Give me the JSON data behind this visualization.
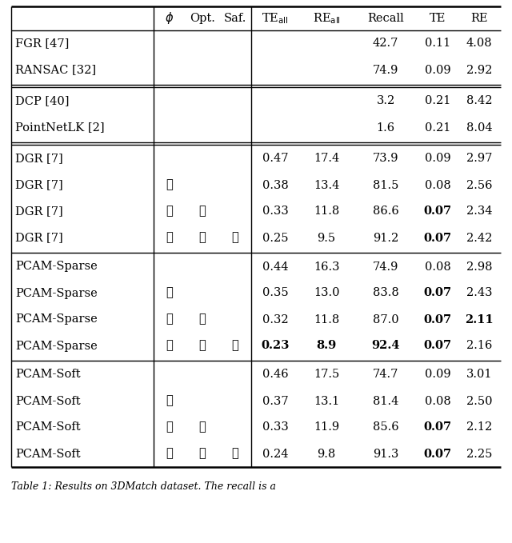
{
  "rows": [
    {
      "method": "FGR [47]",
      "phi": " ",
      "opt": " ",
      "saf": " ",
      "te_all": "",
      "re_all": "",
      "recall": "42.7",
      "te": "0.11",
      "re": "4.08",
      "bold": []
    },
    {
      "method": "RANSAC [32]",
      "phi": " ",
      "opt": " ",
      "saf": " ",
      "te_all": "",
      "re_all": "",
      "recall": "74.9",
      "te": "0.09",
      "re": "2.92",
      "bold": []
    },
    {
      "method": "DCP [40]",
      "phi": " ",
      "opt": " ",
      "saf": " ",
      "te_all": "",
      "re_all": "",
      "recall": "3.2",
      "te": "0.21",
      "re": "8.42",
      "bold": []
    },
    {
      "method": "PointNetLK [2]",
      "phi": " ",
      "opt": " ",
      "saf": " ",
      "te_all": "",
      "re_all": "",
      "recall": "1.6",
      "te": "0.21",
      "re": "8.04",
      "bold": []
    },
    {
      "method": "DGR [7]",
      "phi": " ",
      "opt": " ",
      "saf": " ",
      "te_all": "0.47",
      "re_all": "17.4",
      "recall": "73.9",
      "te": "0.09",
      "re": "2.97",
      "bold": []
    },
    {
      "method": "DGR [7]",
      "phi": "v",
      "opt": " ",
      "saf": " ",
      "te_all": "0.38",
      "re_all": "13.4",
      "recall": "81.5",
      "te": "0.08",
      "re": "2.56",
      "bold": []
    },
    {
      "method": "DGR [7]",
      "phi": "v",
      "opt": "v",
      "saf": " ",
      "te_all": "0.33",
      "re_all": "11.8",
      "recall": "86.6",
      "te": "0.07",
      "re": "2.34",
      "bold": [
        "te"
      ]
    },
    {
      "method": "DGR [7]",
      "phi": "v",
      "opt": "v",
      "saf": "v",
      "te_all": "0.25",
      "re_all": "9.5",
      "recall": "91.2",
      "te": "0.07",
      "re": "2.42",
      "bold": [
        "te"
      ]
    },
    {
      "method": "PCAM-Sparse",
      "phi": " ",
      "opt": " ",
      "saf": " ",
      "te_all": "0.44",
      "re_all": "16.3",
      "recall": "74.9",
      "te": "0.08",
      "re": "2.98",
      "bold": []
    },
    {
      "method": "PCAM-Sparse",
      "phi": "v",
      "opt": " ",
      "saf": " ",
      "te_all": "0.35",
      "re_all": "13.0",
      "recall": "83.8",
      "te": "0.07",
      "re": "2.43",
      "bold": [
        "te"
      ]
    },
    {
      "method": "PCAM-Sparse",
      "phi": "v",
      "opt": "v",
      "saf": " ",
      "te_all": "0.32",
      "re_all": "11.8",
      "recall": "87.0",
      "te": "0.07",
      "re": "2.11",
      "bold": [
        "te",
        "re"
      ]
    },
    {
      "method": "PCAM-Sparse",
      "phi": "v",
      "opt": "v",
      "saf": "v",
      "te_all": "0.23",
      "re_all": "8.9",
      "recall": "92.4",
      "te": "0.07",
      "re": "2.16",
      "bold": [
        "te_all",
        "re_all",
        "recall",
        "te"
      ]
    },
    {
      "method": "PCAM-Soft",
      "phi": " ",
      "opt": " ",
      "saf": " ",
      "te_all": "0.46",
      "re_all": "17.5",
      "recall": "74.7",
      "te": "0.09",
      "re": "3.01",
      "bold": []
    },
    {
      "method": "PCAM-Soft",
      "phi": "v",
      "opt": " ",
      "saf": " ",
      "te_all": "0.37",
      "re_all": "13.1",
      "recall": "81.4",
      "te": "0.08",
      "re": "2.50",
      "bold": []
    },
    {
      "method": "PCAM-Soft",
      "phi": "v",
      "opt": "v",
      "saf": " ",
      "te_all": "0.33",
      "re_all": "11.9",
      "recall": "85.6",
      "te": "0.07",
      "re": "2.12",
      "bold": [
        "te"
      ]
    },
    {
      "method": "PCAM-Soft",
      "phi": "v",
      "opt": "v",
      "saf": "v",
      "te_all": "0.24",
      "re_all": "9.8",
      "recall": "91.3",
      "te": "0.07",
      "re": "2.25",
      "bold": [
        "te"
      ]
    }
  ],
  "section_groups": [
    {
      "rows": [
        0,
        1
      ],
      "double_below": true
    },
    {
      "rows": [
        2,
        3
      ],
      "double_below": false
    },
    {
      "rows": [
        4,
        5,
        6,
        7
      ],
      "double_below": false
    },
    {
      "rows": [
        8,
        9,
        10,
        11
      ],
      "double_below": false
    },
    {
      "rows": [
        12,
        13,
        14,
        15
      ],
      "double_below": false
    }
  ],
  "caption": "Table 1: Results on 3DMatch dataset. The recall is a",
  "fontsize": 10.5,
  "caption_fontsize": 9.0
}
